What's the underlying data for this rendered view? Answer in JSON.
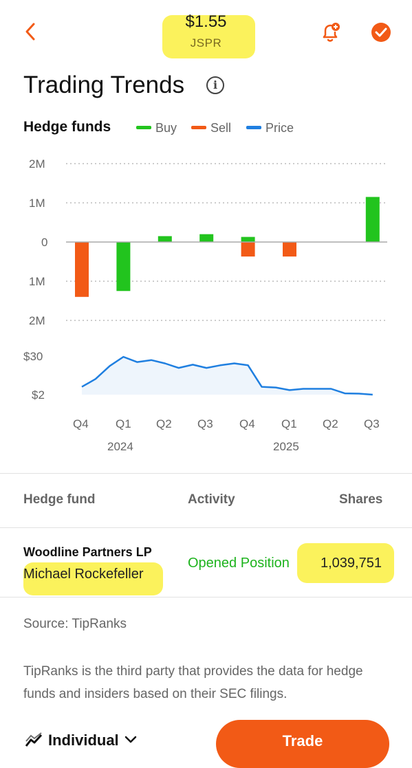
{
  "header": {
    "price": "$1.55",
    "ticker": "JSPR"
  },
  "icons": {
    "back": "chevron-left-icon",
    "alert": "bell-plus-icon",
    "done": "check-circle-icon",
    "info": "info-icon"
  },
  "page_title": "Trading Trends",
  "section": {
    "title": "Hedge funds",
    "legend": [
      {
        "label": "Buy",
        "color": "#22c41e"
      },
      {
        "label": "Sell",
        "color": "#f25a16"
      },
      {
        "label": "Price",
        "color": "#1f7fe0"
      }
    ]
  },
  "chart_data": [
    {
      "type": "bar",
      "categories": [
        "Q4 2023",
        "Q1 2024",
        "Q2 2024",
        "Q3 2024",
        "Q4 2024",
        "Q1 2025",
        "Q2 2025",
        "Q3 2025"
      ],
      "series": [
        {
          "name": "Buy",
          "color": "#22c41e",
          "values": [
            0,
            -1250000,
            150000,
            200000,
            130000,
            0,
            0,
            1150000
          ]
        },
        {
          "name": "Sell",
          "color": "#f25a16",
          "values": [
            -1400000,
            0,
            0,
            0,
            -370000,
            -370000,
            0,
            0
          ]
        }
      ],
      "y_ticks": [
        "2M",
        "1M",
        "0",
        "1M",
        "2M"
      ],
      "ylim": [
        -2000000,
        2000000
      ],
      "grid": true
    },
    {
      "type": "area",
      "series": [
        {
          "name": "Price",
          "color": "#1f7fe0",
          "x": [
            0,
            0.33,
            0.67,
            1,
            1.33,
            1.67,
            2,
            2.33,
            2.67,
            3,
            3.33,
            3.67,
            4,
            4.33,
            4.67,
            5,
            5.33,
            5.67,
            6,
            6.33,
            6.67,
            7
          ],
          "values": [
            11,
            17,
            27,
            34,
            30,
            31.5,
            29,
            25.5,
            28,
            25.5,
            27.5,
            29,
            27.5,
            11,
            10.5,
            8.5,
            9.5,
            9.5,
            9.5,
            6,
            5.8,
            5
          ]
        }
      ],
      "y_ticks": [
        "$30",
        "$2"
      ],
      "x_ticks": [
        "Q4",
        "Q1",
        "Q2",
        "Q3",
        "Q4",
        "Q1",
        "Q2",
        "Q3"
      ],
      "x_year_labels": [
        "2024",
        "2025"
      ]
    }
  ],
  "table": {
    "headers": [
      "Hedge fund",
      "Activity",
      "Shares"
    ],
    "rows": [
      {
        "fund": "Woodline Partners LP",
        "manager": "Michael Rockefeller",
        "activity": "Opened Position",
        "shares": "1,039,751"
      }
    ]
  },
  "source": "Source: TipRanks",
  "disclaimer": "TipRanks is the third party that provides the data for hedge funds and insiders based on their SEC filings.",
  "footer": {
    "account_label": "Individual",
    "trade_label": "Trade"
  }
}
